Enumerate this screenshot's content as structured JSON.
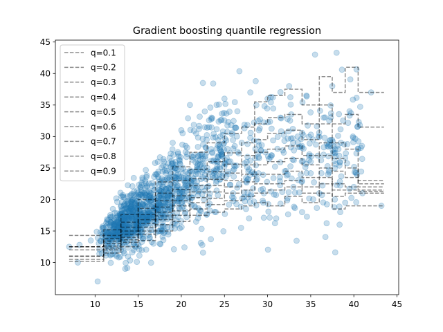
{
  "chart_data": {
    "type": "scatter",
    "title": "Gradient boosting quantile regression",
    "xlabel": "",
    "ylabel": "",
    "xlim": [
      5.4,
      45.2
    ],
    "ylim": [
      4.9,
      45.3
    ],
    "xticks": [
      10,
      15,
      20,
      25,
      30,
      35,
      40,
      45
    ],
    "yticks": [
      10,
      15,
      20,
      25,
      30,
      35,
      40,
      45
    ],
    "grid": false,
    "legend_position": "top-left",
    "scatter_color": "#1f77b4",
    "line_color": "#7f7f7f",
    "scatter_series": {
      "name": "",
      "note_points": [
        [
          7.0,
          12.5
        ],
        [
          8.0,
          10.0
        ],
        [
          8.2,
          12.8
        ],
        [
          9.5,
          13.5
        ],
        [
          10.3,
          7.0
        ],
        [
          11.0,
          15.5
        ],
        [
          12.0,
          14.0
        ],
        [
          12.5,
          11.0
        ],
        [
          13.0,
          17.0
        ],
        [
          13.5,
          9.0
        ],
        [
          14.0,
          16.0
        ],
        [
          14.5,
          12.0
        ],
        [
          15.0,
          19.0
        ],
        [
          15.5,
          14.5
        ],
        [
          16.0,
          22.0
        ],
        [
          16.5,
          17.0
        ],
        [
          17.0,
          24.0
        ],
        [
          17.5,
          13.0
        ],
        [
          18.0,
          26.0
        ],
        [
          18.5,
          20.0
        ],
        [
          19.0,
          29.0
        ],
        [
          19.5,
          16.0
        ],
        [
          20.0,
          31.0
        ],
        [
          20.5,
          23.0
        ],
        [
          21.0,
          35.0
        ],
        [
          21.5,
          19.0
        ],
        [
          22.0,
          27.0
        ],
        [
          22.5,
          38.5
        ],
        [
          23.0,
          22.0
        ],
        [
          23.5,
          33.0
        ],
        [
          24.0,
          18.0
        ],
        [
          24.5,
          30.0
        ],
        [
          25.0,
          36.0
        ],
        [
          25.5,
          26.0
        ],
        [
          26.0,
          21.0
        ],
        [
          26.5,
          34.0
        ],
        [
          27.0,
          29.0
        ],
        [
          27.5,
          18.5
        ],
        [
          28.0,
          37.0
        ],
        [
          28.5,
          24.0
        ],
        [
          29.0,
          31.0
        ],
        [
          29.5,
          19.5
        ],
        [
          30.0,
          36.0
        ],
        [
          30.5,
          27.0
        ],
        [
          31.0,
          17.0
        ],
        [
          31.5,
          33.0
        ],
        [
          32.0,
          24.5
        ],
        [
          32.5,
          38.0
        ],
        [
          33.0,
          22.0
        ],
        [
          33.5,
          30.0
        ],
        [
          34.0,
          18.0
        ],
        [
          34.5,
          36.5
        ],
        [
          35.0,
          26.0
        ],
        [
          35.5,
          43.0
        ],
        [
          36.0,
          21.0
        ],
        [
          36.5,
          33.0
        ],
        [
          37.0,
          24.0
        ],
        [
          37.5,
          38.0
        ],
        [
          38.0,
          43.3
        ],
        [
          38.5,
          29.0
        ],
        [
          39.0,
          19.5
        ],
        [
          39.5,
          34.0
        ],
        [
          40.0,
          22.0
        ],
        [
          40.5,
          28.0
        ],
        [
          41.0,
          21.0
        ],
        [
          42.0,
          37.0
        ],
        [
          43.2,
          19.0
        ]
      ]
    },
    "quantile_series": [
      {
        "name": "q=0.1",
        "x": [
          7,
          9,
          11,
          13,
          15,
          17,
          19,
          21,
          23,
          25,
          27,
          28.5,
          30,
          32,
          34,
          36,
          37.5,
          39,
          40.5,
          42,
          43.5
        ],
        "y": [
          10.2,
          10.2,
          11.5,
          12.5,
          13.5,
          15.0,
          16.5,
          17.5,
          18.0,
          18.5,
          19.0,
          19.5,
          19.0,
          20.5,
          19.5,
          21.0,
          18.5,
          19.0,
          19.0,
          19.0,
          19.0
        ]
      },
      {
        "name": "q=0.2",
        "x": [
          7,
          9,
          11,
          13,
          15,
          17,
          19,
          21,
          23,
          25,
          27,
          28.5,
          30,
          32,
          34,
          36,
          37.5,
          39,
          40.5,
          42,
          43.5
        ],
        "y": [
          10.5,
          10.5,
          12.0,
          13.2,
          14.5,
          16.0,
          17.5,
          18.5,
          19.2,
          19.8,
          20.5,
          21.0,
          21.5,
          22.0,
          21.0,
          22.5,
          20.5,
          21.0,
          21.0,
          21.0,
          21.0
        ]
      },
      {
        "name": "q=0.3",
        "x": [
          7,
          9,
          11,
          13,
          15,
          17,
          19,
          21,
          23,
          25,
          27,
          28.5,
          30,
          32,
          34,
          36,
          37.5,
          39,
          40.5,
          42,
          43.5
        ],
        "y": [
          11.0,
          11.0,
          12.3,
          13.6,
          15.0,
          16.8,
          18.2,
          19.5,
          20.2,
          21.0,
          21.5,
          22.5,
          22.5,
          23.0,
          22.0,
          23.5,
          21.5,
          21.5,
          21.3,
          21.3,
          21.3
        ]
      },
      {
        "name": "q=0.4",
        "x": [
          7,
          9,
          11,
          13,
          15,
          17,
          19,
          21,
          23,
          25,
          27,
          28.5,
          30,
          32,
          34,
          36,
          37.5,
          39,
          40.5,
          42,
          43.5
        ],
        "y": [
          11.0,
          11.0,
          12.6,
          14.0,
          15.6,
          17.4,
          19.0,
          20.3,
          21.2,
          22.0,
          22.8,
          24.0,
          24.0,
          24.5,
          23.5,
          25.0,
          22.5,
          22.0,
          21.5,
          21.5,
          21.5
        ]
      },
      {
        "name": "q=0.5",
        "x": [
          7,
          9,
          11,
          13,
          15,
          17,
          19,
          21,
          23,
          25,
          27,
          28.5,
          30,
          32,
          34,
          36,
          37.5,
          39,
          40.5,
          42,
          43.5
        ],
        "y": [
          12.0,
          12.0,
          13.0,
          14.5,
          16.2,
          18.0,
          19.8,
          21.2,
          22.2,
          23.0,
          24.0,
          25.5,
          26.0,
          26.5,
          25.5,
          27.0,
          24.5,
          23.5,
          22.0,
          22.0,
          22.0
        ]
      },
      {
        "name": "q=0.6",
        "x": [
          7,
          9,
          11,
          13,
          15,
          17,
          19,
          21,
          23,
          25,
          27,
          28.5,
          30,
          32,
          34,
          36,
          37.5,
          39,
          40.5,
          42,
          43.5
        ],
        "y": [
          12.5,
          12.5,
          13.4,
          15.0,
          16.8,
          18.8,
          20.6,
          22.2,
          23.2,
          24.2,
          25.5,
          27.5,
          28.0,
          28.5,
          27.0,
          29.0,
          26.5,
          25.0,
          22.5,
          22.5,
          22.5
        ]
      },
      {
        "name": "q=0.7",
        "x": [
          7,
          9,
          11,
          13,
          15,
          17,
          19,
          21,
          23,
          25,
          27,
          28.5,
          30,
          32,
          34,
          36,
          37.5,
          39,
          40.5,
          42,
          43.5
        ],
        "y": [
          12.5,
          12.5,
          13.8,
          15.6,
          17.6,
          19.8,
          21.6,
          23.3,
          24.4,
          25.6,
          27.0,
          29.5,
          30.5,
          31.0,
          29.5,
          32.0,
          29.0,
          28.0,
          23.0,
          23.0,
          23.0
        ]
      },
      {
        "name": "q=0.8",
        "x": [
          7,
          9,
          11,
          13,
          15,
          17,
          19,
          21,
          23,
          25,
          27,
          28.5,
          30,
          32,
          34,
          36,
          37.5,
          39,
          40.5,
          42,
          43.5
        ],
        "y": [
          12.5,
          12.5,
          14.3,
          16.4,
          18.6,
          21.0,
          23.0,
          24.8,
          26.0,
          27.4,
          29.0,
          32.0,
          33.0,
          33.5,
          32.0,
          35.0,
          32.0,
          33.5,
          31.5,
          31.5,
          31.5
        ]
      },
      {
        "name": "q=0.9",
        "x": [
          7,
          9,
          11,
          13,
          15,
          17,
          19,
          21,
          23,
          25,
          27,
          28.5,
          30,
          32,
          34,
          36,
          37.5,
          39,
          40.5,
          42,
          43.5
        ],
        "y": [
          14.3,
          14.3,
          15.2,
          17.6,
          20.0,
          22.8,
          25.2,
          27.5,
          29.0,
          30.5,
          31.5,
          35.5,
          36.5,
          37.5,
          35.0,
          39.5,
          37.0,
          41.0,
          37.0,
          37.0,
          37.0
        ]
      }
    ]
  }
}
